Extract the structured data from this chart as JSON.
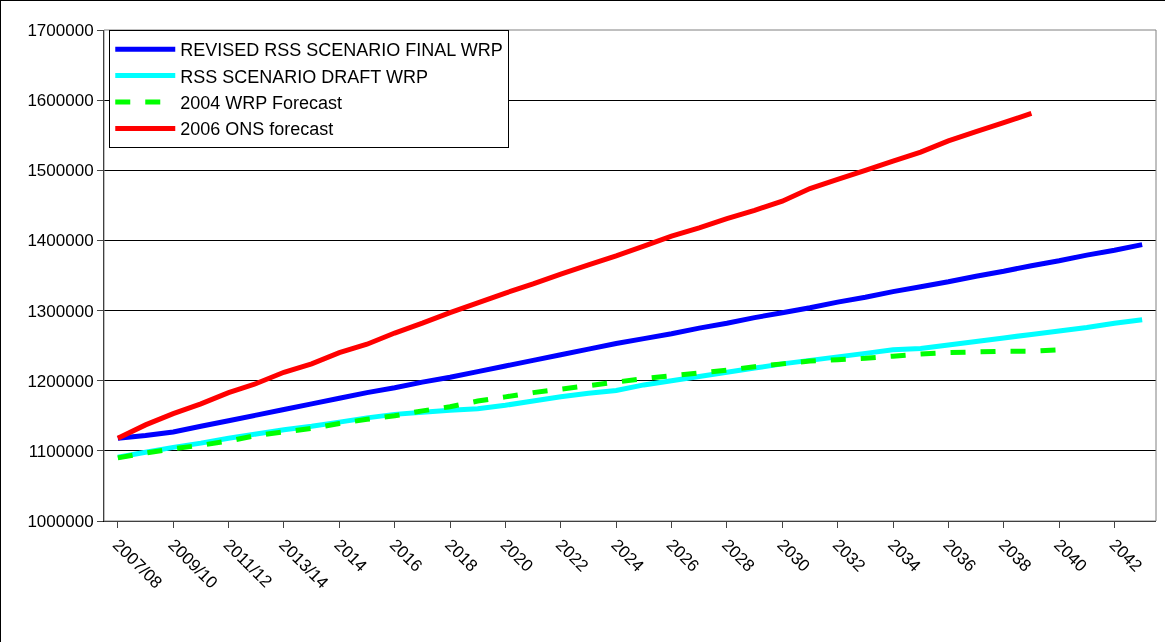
{
  "chart_data": {
    "type": "line",
    "categories": [
      "2007/08",
      null,
      "2009/10",
      null,
      "2011/12",
      null,
      "2013/14",
      null,
      "2014",
      null,
      "2016",
      null,
      "2018",
      null,
      "2020",
      null,
      "2022",
      null,
      "2024",
      null,
      "2026",
      null,
      "2028",
      null,
      "2030",
      null,
      "2032",
      null,
      "2034",
      null,
      "2036",
      null,
      "2038",
      null,
      "2040",
      null,
      "2042",
      null
    ],
    "series": [
      {
        "name": "REVISED RSS SCENARIO FINAL WRP",
        "color": "#0000ff",
        "line_style": "solid",
        "values": [
          1118000,
          1122000,
          1127000,
          1135000,
          1143000,
          1151000,
          1159000,
          1167000,
          1175000,
          1183000,
          1190000,
          1198000,
          1205000,
          1213000,
          1221000,
          1229000,
          1237000,
          1245000,
          1253000,
          1260000,
          1267000,
          1275000,
          1282000,
          1290000,
          1297000,
          1304000,
          1312000,
          1319000,
          1327000,
          1334000,
          1341000,
          1349000,
          1356000,
          1364000,
          1371000,
          1379000,
          1386000,
          1394000
        ]
      },
      {
        "name": "RSS SCENARIO DRAFT WRP",
        "color": "#00ffff",
        "line_style": "solid",
        "values": [
          1091000,
          1098000,
          1105000,
          1111000,
          1118000,
          1124000,
          1130000,
          1135000,
          1141000,
          1147000,
          1152000,
          1155000,
          1158000,
          1160000,
          1165000,
          1171000,
          1177000,
          1182000,
          1186000,
          1194000,
          1200000,
          1206000,
          1212000,
          1218000,
          1224000,
          1229000,
          1234000,
          1239000,
          1244000,
          1246000,
          1251000,
          1256000,
          1261000,
          1266000,
          1271000,
          1276000,
          1282000,
          1287000
        ]
      },
      {
        "name": "2004 WRP Forecast",
        "color": "#00ff00",
        "line_style": "dashed",
        "values": [
          1090000,
          1097000,
          1103000,
          1108000,
          1114000,
          1122000,
          1127000,
          1132000,
          1139000,
          1145000,
          1150000,
          1157000,
          1163000,
          1171000,
          1177000,
          1183000,
          1188000,
          1193000,
          1198000,
          1203000,
          1207000,
          1211000,
          1215000,
          1220000,
          1224000,
          1228000,
          1230000,
          1232000,
          1235000,
          1238000,
          1240000,
          1241000,
          1242000,
          1242000,
          1244000,
          null,
          null,
          null
        ]
      },
      {
        "name": "2006 ONS forecast",
        "color": "#ff0000",
        "line_style": "solid",
        "values": [
          1118000,
          1137000,
          1153000,
          1167000,
          1183000,
          1196000,
          1212000,
          1224000,
          1240000,
          1252000,
          1268000,
          1282000,
          1297000,
          1311000,
          1325000,
          1338000,
          1352000,
          1365000,
          1378000,
          1392000,
          1406000,
          1418000,
          1431000,
          1443000,
          1456000,
          1474000,
          1487000,
          1500000,
          1513000,
          1526000,
          1542000,
          1555000,
          1568000,
          1581000,
          null,
          null,
          null,
          null
        ]
      }
    ],
    "ylim": [
      1000000,
      1700000
    ],
    "yticks": [
      1000000,
      1100000,
      1200000,
      1300000,
      1400000,
      1500000,
      1600000,
      1700000
    ],
    "grid": "y",
    "legend": "top left",
    "marker": "none"
  }
}
